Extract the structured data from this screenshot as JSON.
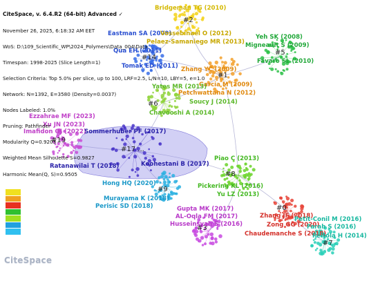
{
  "header": {
    "title": "CiteSpace, v. 6.4.R2 (64-bit) Advanced ✓",
    "lines": [
      "November 26, 2025, 6:18:32 AM EET",
      "WoS: D:\\109_Scientific_WP\\2024_Polymers\\Data_004\\Data",
      "Timespan: 1998-2025 (Slice Length=1)",
      "Selection Criteria: Top 5.0% per slice, up to 100, LRF=2.5, L/N=10, LBY=5, e=1.0",
      "Network: N=1392, E=3580 (Density=0.0037)",
      "Nodes Labeled: 1.0%",
      "Pruning: Pathfinder",
      "Modularity Q=0.9203",
      "Weighted Mean Silhouette S=0.9827",
      "Harmonic Mean(Q, S)=0.9505"
    ]
  },
  "clusters": [
    {
      "id": "#2",
      "color": "#f3d21a"
    },
    {
      "id": "#5",
      "color": "#2fc24a"
    },
    {
      "id": "#14",
      "color": "#3a6fe8"
    },
    {
      "id": "#1",
      "color": "#f3a02a"
    },
    {
      "id": "#6",
      "color": "#8fd43a"
    },
    {
      "id": "#19",
      "color": "#c94fd6"
    },
    {
      "id": "#17 ...",
      "color": "#4a36c9"
    },
    {
      "id": "#8",
      "color": "#6bd42a"
    },
    {
      "id": "#9",
      "color": "#2ab0e0"
    },
    {
      "id": "#0",
      "color": "#e8453a"
    },
    {
      "id": "#3",
      "color": "#c84ae0"
    },
    {
      "id": "#7",
      "color": "#2ad0b8"
    }
  ],
  "labels": [
    {
      "text": "Bridgeman TG (2010)",
      "color": "#d4b800"
    },
    {
      "text": "Eastman SA (2009)",
      "color": "#2a4fd0"
    },
    {
      "text": "Vossebinael O (2012)",
      "color": "#c8a800"
    },
    {
      "text": "Pelaez-Samaniego MR (2013)",
      "color": "#c8a800"
    },
    {
      "text": "Yeh SK (2008)",
      "color": "#22a83a"
    },
    {
      "text": "Migneault S (2009)",
      "color": "#22a83a"
    },
    {
      "text": "Qua EH (2011)",
      "color": "#2a4fd0"
    },
    {
      "text": "Fávaro SL (2010)",
      "color": "#22a83a"
    },
    {
      "text": "Tomak ED (2011)",
      "color": "#2a4fd0"
    },
    {
      "text": "Zhang YC (2009)",
      "color": "#e08a10"
    },
    {
      "text": "Garcia M (2009)",
      "color": "#e08a10"
    },
    {
      "text": "Yates MR (2013)",
      "color": "#5cb82a"
    },
    {
      "text": "Petchwattana N (2012)",
      "color": "#e08a10"
    },
    {
      "text": "Soucy J (2014)",
      "color": "#5cb82a"
    },
    {
      "text": "Chavooshi A (2014)",
      "color": "#5cb82a"
    },
    {
      "text": "Ezzahrae MF (2023)",
      "color": "#c040c8"
    },
    {
      "text": "Xu JN (2023)",
      "color": "#c040c8"
    },
    {
      "text": "Imafidon OJ (2022)",
      "color": "#c040c8"
    },
    {
      "text": "Sommerhuber PF (2017)",
      "color": "#2a22a8"
    },
    {
      "text": "Ratanawilai T (2018)",
      "color": "#2a22a8"
    },
    {
      "text": "Koohestani B (2017)",
      "color": "#2a22a8"
    },
    {
      "text": "Piao C (2013)",
      "color": "#44b822"
    },
    {
      "text": "Hong HQ (2020)",
      "color": "#1a98c8"
    },
    {
      "text": "Pickering KL (2016)",
      "color": "#44b822"
    },
    {
      "text": "Yu LZ (2013)",
      "color": "#44b822"
    },
    {
      "text": "Murayama K (2018)",
      "color": "#1a98c8"
    },
    {
      "text": "Perisic SD (2018)",
      "color": "#1a98c8"
    },
    {
      "text": "Gupta MK (2017)",
      "color": "#b838c8"
    },
    {
      "text": "AL-Oqla FM (2017)",
      "color": "#b838c8"
    },
    {
      "text": "Husseinsyah S (2016)",
      "color": "#b838c8"
    },
    {
      "text": "Zhang JF (2018)",
      "color": "#d4302a"
    },
    {
      "text": "Zong GG (2020)",
      "color": "#d4302a"
    },
    {
      "text": "Chaudemanche S (2018)",
      "color": "#d4302a"
    },
    {
      "text": "Petit-Conil M (2016)",
      "color": "#18b8a0"
    },
    {
      "text": "Farah S (2016)",
      "color": "#18b8a0"
    },
    {
      "text": "Peltola H (2014)",
      "color": "#18b8a0"
    }
  ],
  "legend": {
    "colors": [
      "#f0e020",
      "#f0a020",
      "#e83020",
      "#30c030",
      "#a0e020",
      "#20a0e0",
      "#30c0f0"
    ],
    "years": [
      "",
      "",
      "",
      "",
      "",
      "",
      ""
    ]
  },
  "logo": "CiteSpace"
}
